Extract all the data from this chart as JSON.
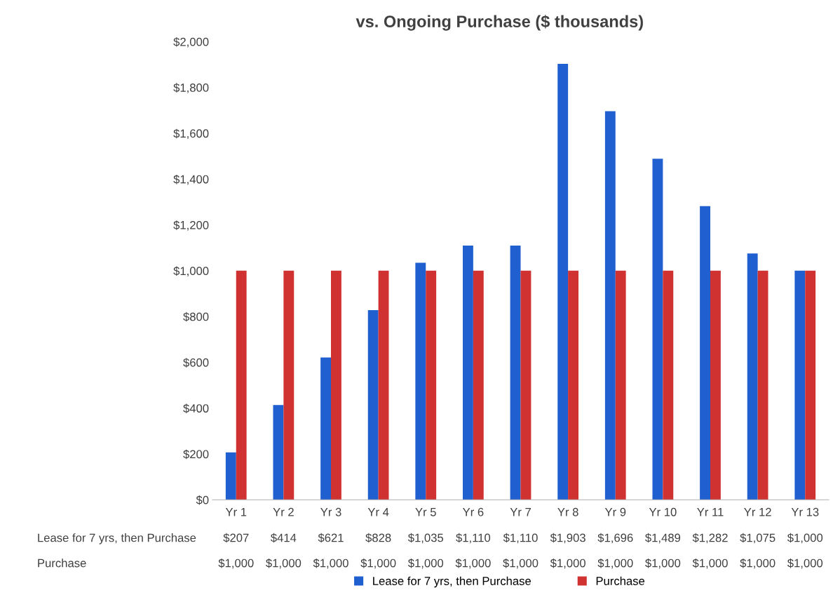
{
  "chart_data": {
    "type": "bar",
    "title": "vs. Ongoing Purchase ($ thousands)",
    "categories": [
      "Yr 1",
      "Yr 2",
      "Yr 3",
      "Yr 4",
      "Yr 5",
      "Yr 6",
      "Yr 7",
      "Yr 8",
      "Yr 9",
      "Yr 10",
      "Yr 11",
      "Yr 12",
      "Yr 13"
    ],
    "series": [
      {
        "name": "Lease for 7 yrs, then Purchase",
        "color": "#1f5fd0",
        "values": [
          207,
          414,
          621,
          828,
          1035,
          1110,
          1110,
          1903,
          1696,
          1489,
          1282,
          1075,
          1000
        ],
        "value_labels": [
          "$207",
          "$414",
          "$621",
          "$828",
          "$1,035",
          "$1,110",
          "$1,110",
          "$1,903",
          "$1,696",
          "$1,489",
          "$1,282",
          "$1,075",
          "$1,000"
        ]
      },
      {
        "name": "Purchase",
        "color": "#d03232",
        "values": [
          1000,
          1000,
          1000,
          1000,
          1000,
          1000,
          1000,
          1000,
          1000,
          1000,
          1000,
          1000,
          1000
        ],
        "value_labels": [
          "$1,000",
          "$1,000",
          "$1,000",
          "$1,000",
          "$1,000",
          "$1,000",
          "$1,000",
          "$1,000",
          "$1,000",
          "$1,000",
          "$1,000",
          "$1,000",
          "$1,000"
        ]
      }
    ],
    "ylim": [
      0,
      2000
    ],
    "yticks": [
      {
        "value": 0,
        "label": "$0"
      },
      {
        "value": 200,
        "label": "$200"
      },
      {
        "value": 400,
        "label": "$400"
      },
      {
        "value": 600,
        "label": "$600"
      },
      {
        "value": 800,
        "label": "$800"
      },
      {
        "value": 1000,
        "label": "$1,000"
      },
      {
        "value": 1200,
        "label": "$1,200"
      },
      {
        "value": 1400,
        "label": "$1,400"
      },
      {
        "value": 1600,
        "label": "$1,600"
      },
      {
        "value": 1800,
        "label": "$1,800"
      },
      {
        "value": 2000,
        "label": "$2,000"
      }
    ],
    "legend": "bottom",
    "grid": false
  }
}
